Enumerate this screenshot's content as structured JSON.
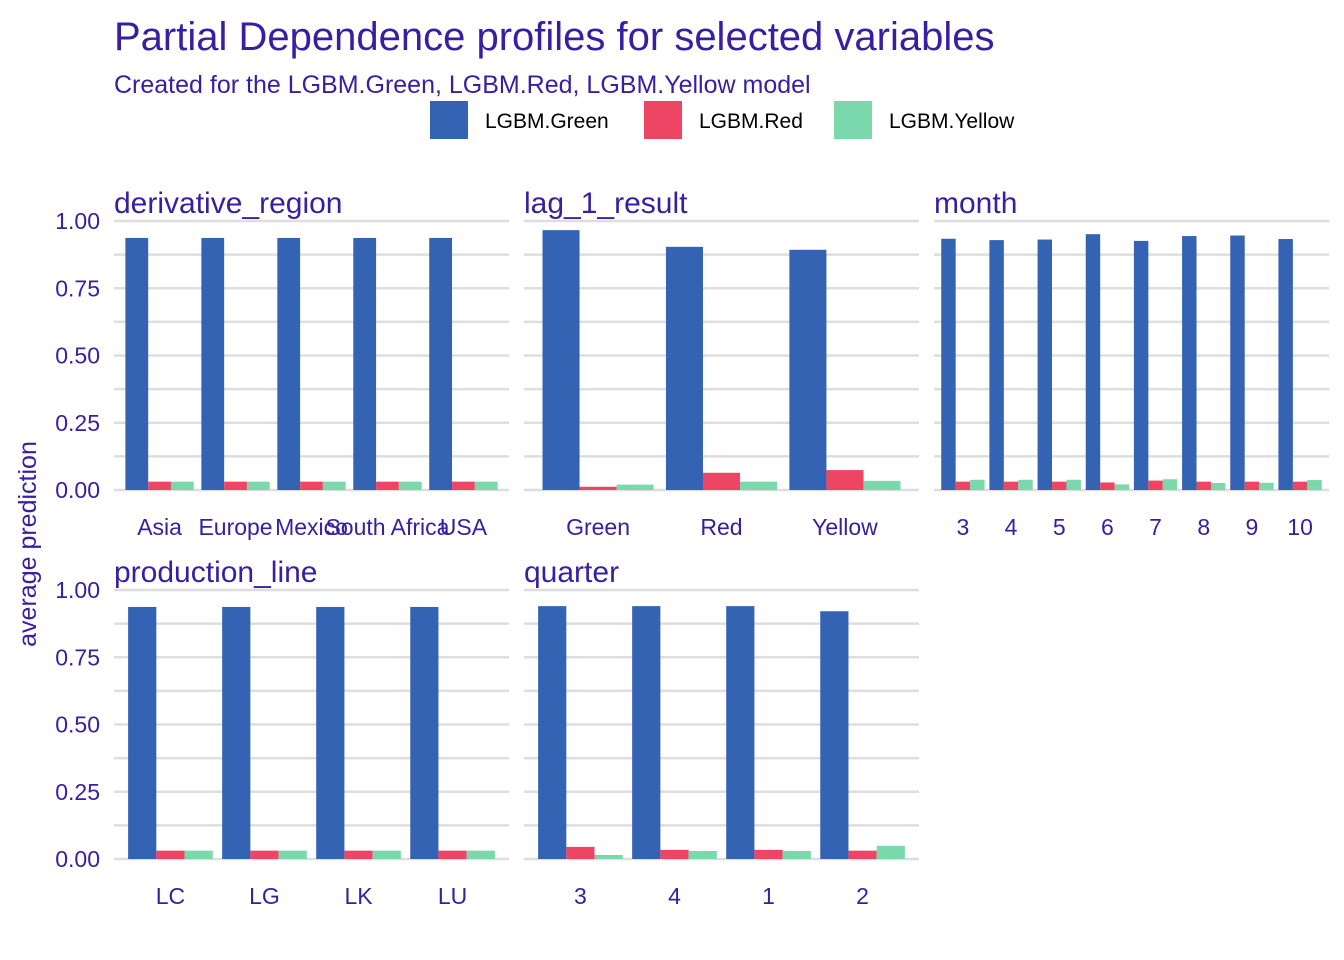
{
  "title": "Partial Dependence profiles for selected variables",
  "subtitle": "Created for the LGBM.Green, LGBM.Red, LGBM.Yellow model",
  "ylabel": "average prediction",
  "colors": {
    "LGBM.Green": "#3563b3",
    "LGBM.Red": "#ee4564",
    "LGBM.Yellow": "#7bd8ac",
    "text": "#371ea3",
    "grid": "#dedede"
  },
  "chart_data": {
    "type": "bar",
    "series_names": [
      "LGBM.Green",
      "LGBM.Red",
      "LGBM.Yellow"
    ],
    "y_ticks": [
      "0.00",
      "0.25",
      "0.50",
      "0.75",
      "1.00"
    ],
    "ylim": [
      0,
      1
    ],
    "grid": true,
    "legend": "top",
    "panels": [
      {
        "label": "derivative_region",
        "categories": [
          "Asia",
          "Europe",
          "Mexico",
          "South Africa",
          "USA"
        ],
        "series": [
          {
            "name": "LGBM.Green",
            "values": [
              0.937,
              0.937,
              0.937,
              0.937,
              0.937
            ]
          },
          {
            "name": "LGBM.Red",
            "values": [
              0.031,
              0.031,
              0.031,
              0.031,
              0.031
            ]
          },
          {
            "name": "LGBM.Yellow",
            "values": [
              0.031,
              0.031,
              0.031,
              0.031,
              0.031
            ]
          }
        ]
      },
      {
        "label": "lag_1_result",
        "categories": [
          "Green",
          "Red",
          "Yellow"
        ],
        "series": [
          {
            "name": "LGBM.Green",
            "values": [
              0.966,
              0.904,
              0.893
            ]
          },
          {
            "name": "LGBM.Red",
            "values": [
              0.012,
              0.064,
              0.074
            ]
          },
          {
            "name": "LGBM.Yellow",
            "values": [
              0.02,
              0.031,
              0.034
            ]
          }
        ]
      },
      {
        "label": "month",
        "categories": [
          "3",
          "4",
          "5",
          "6",
          "7",
          "8",
          "9",
          "10"
        ],
        "series": [
          {
            "name": "LGBM.Green",
            "values": [
              0.934,
              0.929,
              0.931,
              0.951,
              0.926,
              0.944,
              0.946,
              0.933
            ]
          },
          {
            "name": "LGBM.Red",
            "values": [
              0.031,
              0.031,
              0.031,
              0.028,
              0.035,
              0.031,
              0.031,
              0.031
            ]
          },
          {
            "name": "LGBM.Yellow",
            "values": [
              0.038,
              0.038,
              0.038,
              0.021,
              0.04,
              0.026,
              0.027,
              0.037
            ]
          }
        ]
      },
      {
        "label": "production_line",
        "categories": [
          "LC",
          "LG",
          "LK",
          "LU"
        ],
        "series": [
          {
            "name": "LGBM.Green",
            "values": [
              0.937,
              0.937,
              0.937,
              0.937
            ]
          },
          {
            "name": "LGBM.Red",
            "values": [
              0.031,
              0.031,
              0.031,
              0.031
            ]
          },
          {
            "name": "LGBM.Yellow",
            "values": [
              0.031,
              0.031,
              0.031,
              0.031
            ]
          }
        ]
      },
      {
        "label": "quarter",
        "categories": [
          "3",
          "4",
          "1",
          "2"
        ],
        "series": [
          {
            "name": "LGBM.Green",
            "values": [
              0.94,
              0.94,
              0.94,
              0.921
            ]
          },
          {
            "name": "LGBM.Red",
            "values": [
              0.045,
              0.034,
              0.034,
              0.031
            ]
          },
          {
            "name": "LGBM.Yellow",
            "values": [
              0.015,
              0.03,
              0.03,
              0.049
            ]
          }
        ]
      }
    ]
  }
}
